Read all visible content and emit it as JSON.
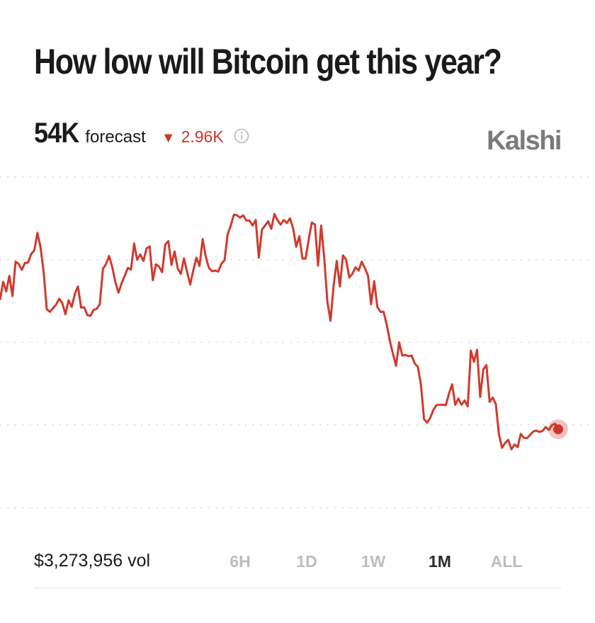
{
  "header": {
    "title": "How low will Bitcoin get this year?",
    "forecast_value": "54K",
    "forecast_label": "forecast",
    "change_arrow": "▼",
    "change_value": "2.96K",
    "info_icon": "info-circle-icon",
    "brand": "Kalshi"
  },
  "colors": {
    "line": "#cf3a2e",
    "negative": "#d0342c",
    "brand": "#7b7b7b",
    "grid": "#d9d9d9"
  },
  "footer": {
    "volume": "$3,273,956 vol",
    "tabs": [
      {
        "label": "6H",
        "active": false
      },
      {
        "label": "1D",
        "active": false
      },
      {
        "label": "1W",
        "active": false
      },
      {
        "label": "1M",
        "active": true
      },
      {
        "label": "ALL",
        "active": false
      }
    ]
  },
  "chart_data": {
    "type": "line",
    "title": "",
    "xlabel": "",
    "ylabel": "",
    "grid": "horizontal dotted",
    "ylim": [
      0,
      100
    ],
    "series": [
      {
        "values": [
          62.8,
          68.3,
          65.4,
          70.1,
          64.0,
          74.4,
          73.7,
          71.9,
          74.0,
          74.1,
          76.7,
          77.8,
          83.1,
          78.8,
          71.3,
          60.0,
          59.2,
          60.3,
          61.4,
          63.2,
          61.8,
          58.5,
          62.7,
          60.7,
          64.7,
          66.9,
          60.5,
          60.6,
          58.2,
          58.0,
          59.8,
          60.1,
          61.5,
          72.2,
          73.7,
          76.1,
          72.7,
          68.2,
          65.0,
          67.9,
          70.1,
          72.5,
          72.0,
          79.9,
          75.0,
          76.6,
          74.6,
          78.4,
          79.0,
          68.8,
          73.6,
          72.9,
          71.2,
          79.6,
          80.6,
          73.4,
          77.5,
          72.3,
          70.7,
          75.4,
          71.3,
          67.5,
          71.8,
          75.6,
          73.1,
          81.2,
          75.9,
          72.5,
          71.5,
          71.7,
          71.4,
          73.8,
          74.8,
          82.7,
          85.3,
          88.6,
          88.4,
          87.7,
          88.4,
          86.8,
          86.8,
          85.3,
          87.0,
          75.6,
          84.1,
          85.3,
          86.6,
          84.3,
          88.8,
          86.9,
          85.6,
          87.0,
          86.1,
          87.5,
          84.5,
          78.9,
          82.1,
          75.3,
          75.3,
          81.1,
          86.2,
          85.6,
          73.2,
          85.3,
          75.3,
          62.2,
          56.5,
          67.1,
          74.6,
          66.9,
          76.3,
          75.0,
          69.6,
          70.7,
          72.7,
          71.7,
          74.4,
          72.4,
          70.2,
          61.5,
          68.5,
          60.7,
          59.2,
          59.2,
          55.4,
          50.5,
          46.5,
          42.9,
          50.0,
          46.0,
          46.2,
          45.8,
          46.0,
          43.6,
          42.6,
          37.1,
          26.7,
          25.7,
          27.2,
          29.6,
          31.0,
          31.1,
          31.1,
          31.0,
          34.5,
          37.3,
          31.1,
          33.0,
          31.1,
          32.4,
          30.6,
          47.5,
          44.1,
          47.7,
          33.5,
          41.8,
          43.1,
          32.0,
          33.3,
          31.3,
          22.1,
          18.1,
          19.6,
          20.5,
          17.6,
          19.1,
          18.3,
          22.3,
          21.1,
          21.0,
          22.0,
          23.0,
          23.3,
          22.9,
          23.2,
          24.4,
          23.5,
          24.9,
          25.4,
          23.7
        ]
      }
    ]
  }
}
